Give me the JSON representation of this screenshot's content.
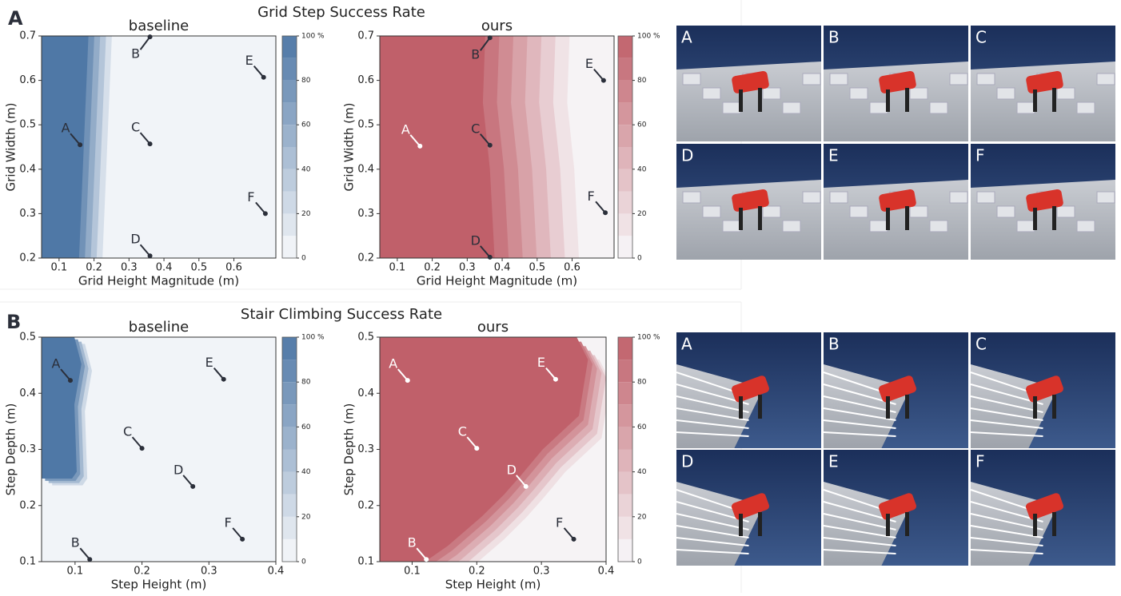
{
  "panels": [
    {
      "label": "A",
      "title": "Grid Step Success Rate"
    },
    {
      "label": "B",
      "title": "Stair Climbing Success Rate"
    }
  ],
  "chart_data": [
    {
      "type": "contour",
      "title": "baseline",
      "xlabel": "Grid Height Magnitude (m)",
      "ylabel": "Grid Width (m)",
      "color": "#4f78a6",
      "xlim": [
        0.05,
        0.72
      ],
      "ylim": [
        0.2,
        0.7
      ],
      "xticks": [
        0.1,
        0.2,
        0.3,
        0.4,
        0.5,
        0.6
      ],
      "yticks": [
        0.2,
        0.3,
        0.4,
        0.5,
        0.6,
        0.7
      ],
      "colorbar_ticks": [
        0,
        20,
        40,
        60,
        80,
        {
          "value": 100,
          "label": "100 %"
        }
      ],
      "points": {
        "labels": [
          "A",
          "B",
          "C",
          "D",
          "E",
          "F"
        ],
        "x": [
          0.16,
          0.36,
          0.36,
          0.36,
          0.685,
          0.69
        ],
        "y": [
          0.455,
          0.698,
          0.457,
          0.205,
          0.607,
          0.3
        ]
      }
    },
    {
      "type": "contour",
      "title": "ours",
      "xlabel": "Grid Height Magnitude (m)",
      "ylabel": "Grid Width (m)",
      "color": "#c0606a",
      "xlim": [
        0.05,
        0.72
      ],
      "ylim": [
        0.2,
        0.7
      ],
      "xticks": [
        0.1,
        0.2,
        0.3,
        0.4,
        0.5,
        0.6
      ],
      "yticks": [
        0.2,
        0.3,
        0.4,
        0.5,
        0.6,
        0.7
      ],
      "colorbar_ticks": [
        0,
        20,
        40,
        60,
        80,
        {
          "value": 100,
          "label": "100 %"
        }
      ],
      "points": {
        "labels": [
          "A",
          "B",
          "C",
          "D",
          "E",
          "F"
        ],
        "x": [
          0.165,
          0.365,
          0.365,
          0.365,
          0.69,
          0.695
        ],
        "y": [
          0.452,
          0.696,
          0.454,
          0.202,
          0.6,
          0.302
        ]
      }
    },
    {
      "type": "contour",
      "title": "baseline",
      "xlabel": "Step Height (m)",
      "ylabel": "Step Depth (m)",
      "color": "#4f78a6",
      "xlim": [
        0.05,
        0.4
      ],
      "ylim": [
        0.1,
        0.5
      ],
      "xticks": [
        0.1,
        0.2,
        0.3,
        0.4
      ],
      "yticks": [
        0.1,
        0.2,
        0.3,
        0.4,
        0.5
      ],
      "colorbar_ticks": [
        0,
        20,
        40,
        60,
        80,
        {
          "value": 100,
          "label": "100 %"
        }
      ],
      "points": {
        "labels": [
          "A",
          "B",
          "C",
          "D",
          "E",
          "F"
        ],
        "x": [
          0.093,
          0.122,
          0.2,
          0.276,
          0.322,
          0.35
        ],
        "y": [
          0.423,
          0.104,
          0.302,
          0.234,
          0.425,
          0.14
        ]
      }
    },
    {
      "type": "contour",
      "title": "ours",
      "xlabel": "Step Height (m)",
      "ylabel": "Step Depth (m)",
      "color": "#c0606a",
      "xlim": [
        0.05,
        0.4
      ],
      "ylim": [
        0.1,
        0.5
      ],
      "xticks": [
        0.1,
        0.2,
        0.3,
        0.4
      ],
      "yticks": [
        0.1,
        0.2,
        0.3,
        0.4,
        0.5
      ],
      "colorbar_ticks": [
        0,
        20,
        40,
        60,
        80,
        {
          "value": 100,
          "label": "100 %"
        }
      ],
      "points": {
        "labels": [
          "A",
          "B",
          "C",
          "D",
          "E",
          "F"
        ],
        "x": [
          0.093,
          0.122,
          0.2,
          0.276,
          0.322,
          0.35
        ],
        "y": [
          0.423,
          0.104,
          0.302,
          0.234,
          0.425,
          0.14
        ]
      }
    }
  ],
  "images": [
    {
      "labels": [
        "A",
        "B",
        "C",
        "D",
        "E",
        "F"
      ]
    },
    {
      "labels": [
        "A",
        "B",
        "C",
        "D",
        "E",
        "F"
      ]
    }
  ]
}
